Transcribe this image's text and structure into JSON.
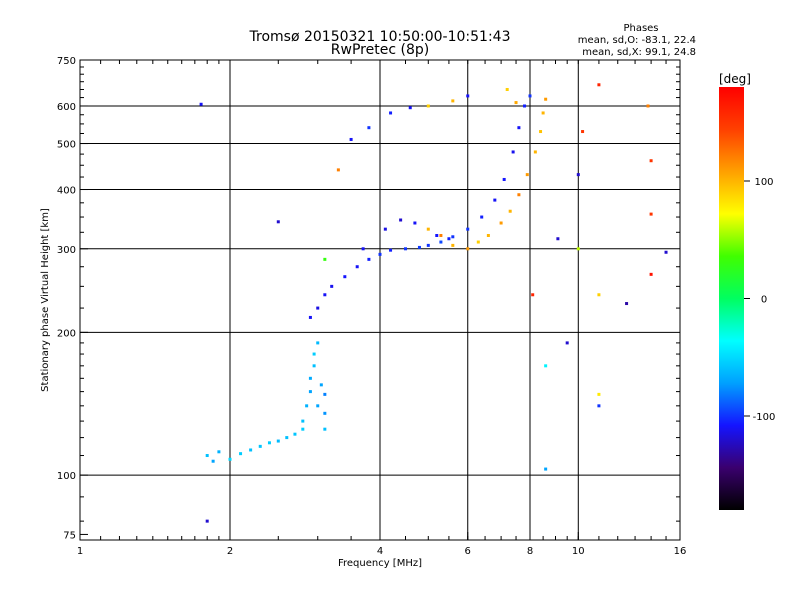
{
  "chart_data": {
    "type": "scatter",
    "title": "Tromsø 20150321 10:50:00-10:51:43",
    "subtitle": "RwPretec (8p)",
    "xlabel": "Frequency [MHz]",
    "ylabel": "Stationary phase Virtual Height [km]",
    "x_scale": "log",
    "y_scale": "log",
    "xlim": [
      1,
      16
    ],
    "ylim": [
      73,
      750
    ],
    "x_ticks": [
      1,
      2,
      4,
      6,
      8,
      10,
      16
    ],
    "x_tick_labels": [
      "1",
      "2",
      "4",
      "6",
      "8",
      "10",
      "16"
    ],
    "x_gridlines": [
      2,
      4,
      6,
      8,
      10
    ],
    "y_ticks": [
      75,
      100,
      200,
      300,
      400,
      500,
      600,
      750
    ],
    "y_tick_labels": [
      "75",
      "100",
      "200",
      "300",
      "400",
      "500",
      "600",
      "750"
    ],
    "y_gridlines": [
      100,
      200,
      300,
      400,
      500,
      600
    ],
    "grid": true,
    "colorbar": {
      "label": "[deg]",
      "range": [
        -180,
        180
      ],
      "ticks": [
        100,
        0,
        -100
      ],
      "tick_labels": [
        "100",
        "0",
        "-100"
      ],
      "colors": [
        "#000000",
        "#3a006e",
        "#1414ff",
        "#00a0ff",
        "#00ffff",
        "#00ff60",
        "#40ff00",
        "#ffff00",
        "#ffa000",
        "#ff4000",
        "#ff0000"
      ]
    },
    "legend": {
      "title": "Phases",
      "lines": [
        "mean, sd,O: -83.1, 22.4",
        "mean, sd,X:  99.1, 24.8"
      ]
    },
    "series": [
      {
        "points": [
          [
            1.8,
            110,
            -60
          ],
          [
            1.85,
            107,
            -70
          ],
          [
            1.9,
            112,
            -65
          ],
          [
            2.0,
            108,
            -50
          ],
          [
            2.1,
            111,
            -55
          ],
          [
            2.2,
            113,
            -60
          ],
          [
            2.3,
            115,
            -58
          ],
          [
            2.4,
            117,
            -55
          ],
          [
            2.5,
            118,
            -62
          ],
          [
            2.6,
            120,
            -60
          ],
          [
            2.7,
            122,
            -58
          ],
          [
            2.8,
            125,
            -55
          ],
          [
            2.8,
            130,
            -60
          ],
          [
            2.85,
            140,
            -65
          ],
          [
            2.9,
            150,
            -70
          ],
          [
            2.9,
            160,
            -68
          ],
          [
            2.95,
            170,
            -60
          ],
          [
            2.95,
            180,
            -55
          ],
          [
            3.0,
            190,
            -62
          ],
          [
            3.0,
            140,
            -70
          ],
          [
            3.1,
            135,
            -75
          ],
          [
            3.05,
            155,
            -70
          ],
          [
            3.1,
            148,
            -80
          ],
          [
            3.1,
            125,
            -60
          ]
        ]
      },
      {
        "points": [
          [
            2.9,
            215,
            -110
          ],
          [
            3.0,
            225,
            -115
          ],
          [
            3.1,
            240,
            -110
          ],
          [
            3.2,
            250,
            -112
          ],
          [
            3.4,
            262,
            -108
          ],
          [
            3.6,
            275,
            -110
          ],
          [
            3.8,
            285,
            -105
          ],
          [
            4.0,
            292,
            -100
          ],
          [
            4.2,
            298,
            -105
          ],
          [
            4.5,
            300,
            -100
          ],
          [
            4.8,
            302,
            -98
          ],
          [
            5.0,
            305,
            -100
          ],
          [
            5.3,
            310,
            -95
          ],
          [
            5.6,
            318,
            -100
          ],
          [
            6.0,
            330,
            -100
          ],
          [
            6.4,
            350,
            -105
          ],
          [
            6.8,
            380,
            -110
          ],
          [
            7.1,
            420,
            -108
          ],
          [
            7.4,
            480,
            -112
          ],
          [
            7.6,
            540,
            -110
          ],
          [
            7.8,
            600,
            -105
          ],
          [
            8.0,
            630,
            -100
          ],
          [
            3.7,
            300,
            -110
          ],
          [
            4.1,
            330,
            -115
          ],
          [
            4.4,
            345,
            -120
          ],
          [
            4.7,
            340,
            -110
          ],
          [
            5.2,
            320,
            -108
          ],
          [
            5.5,
            315,
            -105
          ]
        ]
      },
      {
        "points": [
          [
            5.0,
            330,
            100
          ],
          [
            5.3,
            320,
            120
          ],
          [
            5.6,
            305,
            100
          ],
          [
            6.0,
            300,
            110
          ],
          [
            6.3,
            310,
            90
          ],
          [
            6.6,
            320,
            100
          ],
          [
            7.0,
            340,
            110
          ],
          [
            7.3,
            360,
            100
          ],
          [
            7.6,
            390,
            120
          ],
          [
            7.9,
            430,
            110
          ],
          [
            8.2,
            480,
            100
          ],
          [
            8.4,
            530,
            95
          ],
          [
            8.5,
            580,
            100
          ],
          [
            8.6,
            620,
            110
          ],
          [
            7.2,
            650,
            90
          ],
          [
            7.5,
            610,
            105
          ]
        ]
      },
      {
        "points": [
          [
            1.75,
            605,
            -110
          ],
          [
            1.8,
            80,
            -120
          ],
          [
            2.5,
            342,
            -120
          ],
          [
            3.1,
            285,
            30
          ],
          [
            3.3,
            440,
            120
          ],
          [
            3.5,
            510,
            -110
          ],
          [
            3.8,
            540,
            -100
          ],
          [
            4.2,
            580,
            -105
          ],
          [
            4.6,
            595,
            -110
          ],
          [
            5.0,
            600,
            90
          ],
          [
            5.6,
            615,
            100
          ],
          [
            6.0,
            630,
            -110
          ],
          [
            8.1,
            240,
            160
          ],
          [
            8.6,
            170,
            -40
          ],
          [
            8.6,
            103,
            -70
          ],
          [
            9.1,
            315,
            -120
          ],
          [
            9.5,
            190,
            -120
          ],
          [
            10.0,
            430,
            -120
          ],
          [
            10.0,
            300,
            60
          ],
          [
            10.2,
            530,
            150
          ],
          [
            11.0,
            665,
            160
          ],
          [
            11.0,
            240,
            90
          ],
          [
            11.0,
            148,
            80
          ],
          [
            11.0,
            140,
            -100
          ],
          [
            12.5,
            230,
            -130
          ],
          [
            13.8,
            600,
            120
          ],
          [
            14.0,
            460,
            150
          ],
          [
            14.0,
            355,
            150
          ],
          [
            14.0,
            265,
            170
          ],
          [
            15.0,
            295,
            -120
          ]
        ]
      }
    ]
  }
}
